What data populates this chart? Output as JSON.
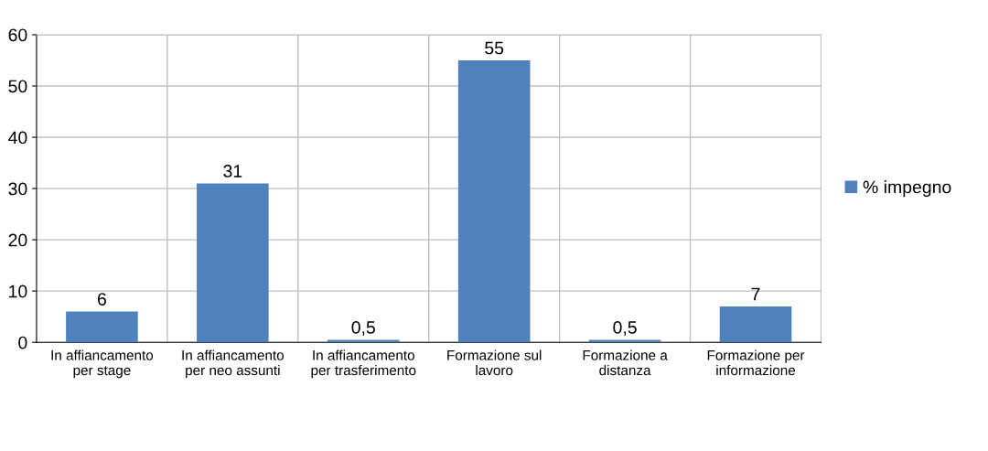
{
  "chart_data": {
    "type": "bar",
    "categories": [
      "In affiancamento per stage",
      "In affiancamento per neo assunti",
      "In affiancamento per trasferimento",
      "Formazione sul lavoro",
      "Formazione a distanza",
      "Formazione per informazione"
    ],
    "series": [
      {
        "name": "% impegno",
        "color": "#4f81bd",
        "values": [
          6,
          31,
          0.5,
          55,
          0.5,
          7
        ],
        "value_labels": [
          "6",
          "31",
          "0,5",
          "55",
          "0,5",
          "7"
        ]
      }
    ],
    "ylim": [
      0,
      60
    ],
    "yticks": [
      0,
      10,
      20,
      30,
      40,
      50,
      60
    ],
    "grid": true,
    "legend": "right"
  }
}
